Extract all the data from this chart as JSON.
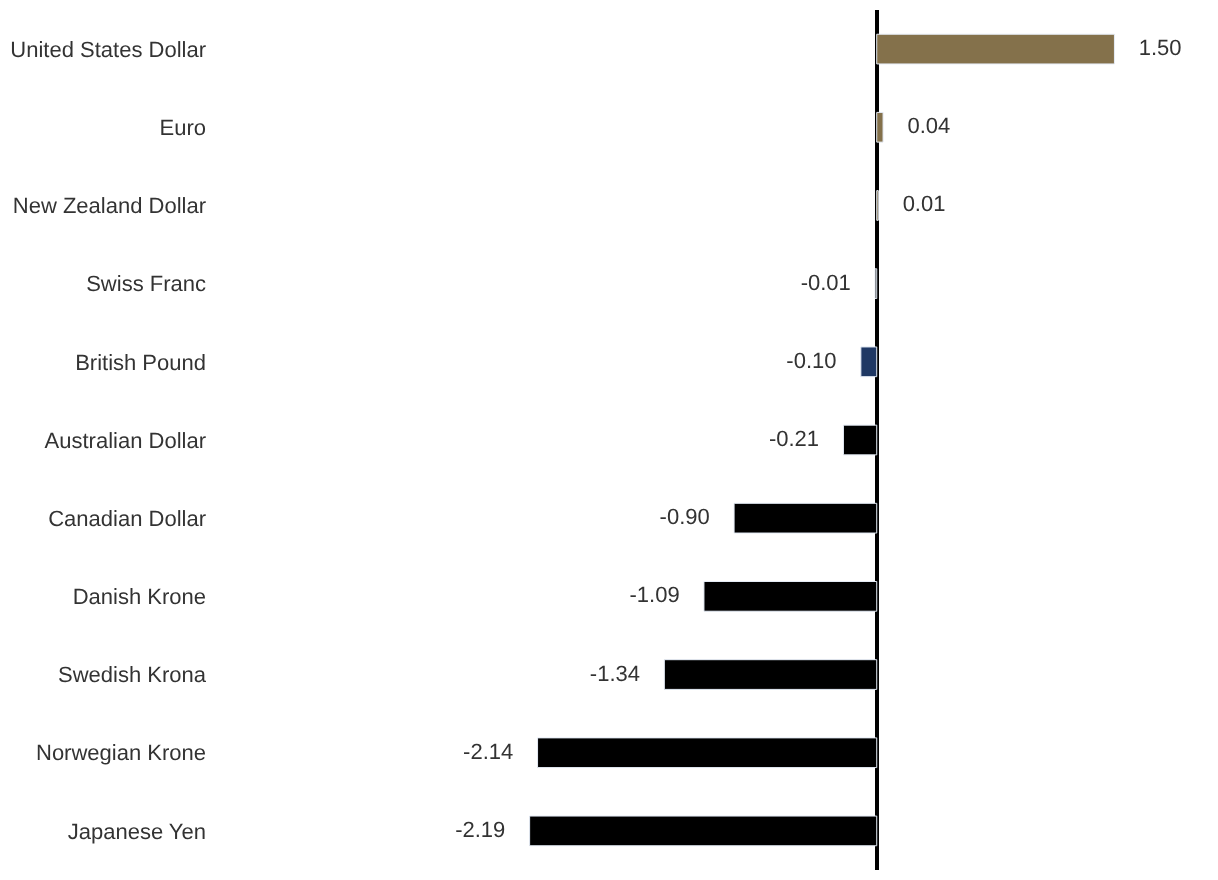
{
  "chart_data": {
    "type": "bar",
    "orientation": "horizontal",
    "categories": [
      "United States Dollar",
      "Euro",
      "New Zealand Dollar",
      "Swiss Franc",
      "British Pound",
      "Australian Dollar",
      "Canadian Dollar",
      "Danish Krone",
      "Swedish Krona",
      "Norwegian Krone",
      "Japanese Yen"
    ],
    "values": [
      1.5,
      0.04,
      0.01,
      -0.01,
      -0.1,
      -0.21,
      -0.9,
      -1.09,
      -1.34,
      -2.14,
      -2.19
    ],
    "colors": [
      "#84714b",
      "#84714b",
      "#84714b",
      "#000000",
      "#1f3864",
      "#000000",
      "#000000",
      "#000000",
      "#000000",
      "#000000",
      "#000000"
    ],
    "value_labels": [
      "1.50",
      "0.04",
      "0.01",
      "-0.01",
      "-0.10",
      "-0.21",
      "-0.90",
      "-1.09",
      "-1.34",
      "-2.14",
      "-2.19"
    ]
  }
}
